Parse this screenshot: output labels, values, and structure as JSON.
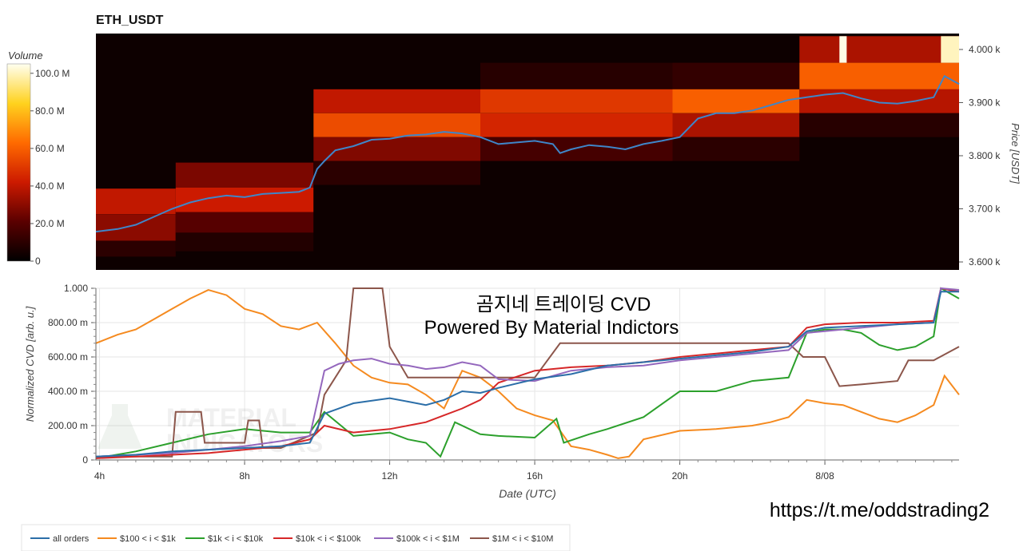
{
  "title": "ETH_USDT",
  "watermark": {
    "title_line1": "곰지네 트레이딩 CVD",
    "title_line2": "Powered By Material Indictors",
    "logo_text_line1": "MATERIAL",
    "logo_text_line2": "INDICATORS",
    "link": "https://t.me/oddstrading2"
  },
  "colors": {
    "all_orders": "#2b6ea8",
    "band_100_1k": "#f58a1f",
    "band_1k_10k": "#2ca02c",
    "band_10k_100k": "#d62728",
    "band_100k_1m": "#9467bd",
    "band_1m_10m": "#8c564b",
    "price_line": "#3f86c9"
  },
  "chart_data": [
    {
      "type": "heatmap",
      "title": "ETH_USDT",
      "colorbar_label": "Volume",
      "colorbar_ticks": [
        "100.0 M",
        "80.0 M",
        "60.0 M",
        "40.0 M",
        "20.0 M",
        "0"
      ],
      "colorbar_range": [
        0,
        105000000
      ],
      "ylabel": "Price [USDT]",
      "y_ticks": [
        "4.000 k",
        "3.900 k",
        "3.800 k",
        "3.700 k",
        "3.600 k"
      ],
      "ylim": [
        3585,
        4030
      ],
      "xlim_hours": [
        3.9,
        27.7
      ],
      "price_series": {
        "x_hours": [
          3.9,
          4.5,
          5.0,
          5.5,
          6.0,
          6.5,
          7.0,
          7.5,
          8.0,
          8.5,
          9.0,
          9.5,
          9.8,
          10.0,
          10.2,
          10.5,
          11.0,
          11.5,
          12.0,
          12.5,
          13.0,
          13.5,
          14.0,
          14.5,
          15.0,
          15.5,
          16.0,
          16.5,
          16.7,
          17.0,
          17.5,
          18.0,
          18.5,
          19.0,
          19.5,
          20.0,
          20.5,
          21.0,
          21.5,
          22.0,
          22.5,
          23.0,
          23.5,
          24.0,
          24.5,
          25.0,
          25.5,
          26.0,
          26.5,
          27.0,
          27.3,
          27.7
        ],
        "price": [
          3657,
          3662,
          3670,
          3685,
          3700,
          3712,
          3720,
          3725,
          3722,
          3728,
          3730,
          3732,
          3740,
          3775,
          3790,
          3810,
          3818,
          3830,
          3832,
          3838,
          3840,
          3845,
          3842,
          3835,
          3822,
          3825,
          3828,
          3822,
          3805,
          3812,
          3820,
          3817,
          3812,
          3822,
          3828,
          3835,
          3870,
          3880,
          3880,
          3885,
          3895,
          3905,
          3910,
          3915,
          3918,
          3908,
          3900,
          3898,
          3903,
          3910,
          3950,
          3935
        ]
      },
      "volume_bands": [
        {
          "x_start": 3.9,
          "x_end": 6.1,
          "price_low": 3690,
          "price_high": 3738,
          "volume": 40000000
        },
        {
          "x_start": 3.9,
          "x_end": 6.1,
          "price_low": 3640,
          "price_high": 3690,
          "volume": 30000000
        },
        {
          "x_start": 3.9,
          "x_end": 6.1,
          "price_low": 3610,
          "price_high": 3640,
          "volume": 10000000
        },
        {
          "x_start": 6.1,
          "x_end": 9.9,
          "price_low": 3740,
          "price_high": 3787,
          "volume": 27000000
        },
        {
          "x_start": 6.1,
          "x_end": 9.9,
          "price_low": 3694,
          "price_high": 3740,
          "volume": 42000000
        },
        {
          "x_start": 6.1,
          "x_end": 9.9,
          "price_low": 3655,
          "price_high": 3694,
          "volume": 20000000
        },
        {
          "x_start": 6.1,
          "x_end": 9.9,
          "price_low": 3620,
          "price_high": 3655,
          "volume": 8000000
        },
        {
          "x_start": 9.9,
          "x_end": 14.5,
          "price_low": 3880,
          "price_high": 3925,
          "volume": 40000000
        },
        {
          "x_start": 9.9,
          "x_end": 14.5,
          "price_low": 3835,
          "price_high": 3880,
          "volume": 55000000
        },
        {
          "x_start": 9.9,
          "x_end": 14.5,
          "price_low": 3790,
          "price_high": 3835,
          "volume": 28000000
        },
        {
          "x_start": 9.9,
          "x_end": 14.5,
          "price_low": 3745,
          "price_high": 3790,
          "volume": 10000000
        },
        {
          "x_start": 14.5,
          "x_end": 19.8,
          "price_low": 3925,
          "price_high": 3975,
          "volume": 9000000
        },
        {
          "x_start": 14.5,
          "x_end": 19.8,
          "price_low": 3880,
          "price_high": 3925,
          "volume": 50000000
        },
        {
          "x_start": 14.5,
          "x_end": 19.8,
          "price_low": 3835,
          "price_high": 3880,
          "volume": 45000000
        },
        {
          "x_start": 14.5,
          "x_end": 19.8,
          "price_low": 3790,
          "price_high": 3835,
          "volume": 16000000
        },
        {
          "x_start": 19.8,
          "x_end": 23.3,
          "price_low": 3925,
          "price_high": 3975,
          "volume": 12000000
        },
        {
          "x_start": 19.8,
          "x_end": 23.3,
          "price_low": 3880,
          "price_high": 3925,
          "volume": 60000000
        },
        {
          "x_start": 19.8,
          "x_end": 23.3,
          "price_low": 3835,
          "price_high": 3880,
          "volume": 36000000
        },
        {
          "x_start": 19.8,
          "x_end": 23.3,
          "price_low": 3790,
          "price_high": 3835,
          "volume": 10000000
        },
        {
          "x_start": 23.3,
          "x_end": 27.7,
          "price_low": 3975,
          "price_high": 4025,
          "volume": 36000000
        },
        {
          "x_start": 23.3,
          "x_end": 27.7,
          "price_low": 3925,
          "price_high": 3975,
          "volume": 60000000
        },
        {
          "x_start": 23.3,
          "x_end": 27.7,
          "price_low": 3880,
          "price_high": 3925,
          "volume": 38000000
        },
        {
          "x_start": 23.3,
          "x_end": 27.7,
          "price_low": 3835,
          "price_high": 3880,
          "volume": 9000000
        },
        {
          "x_start": 27.2,
          "x_end": 27.7,
          "price_low": 3975,
          "price_high": 4025,
          "volume": 100000000
        },
        {
          "x_start": 24.4,
          "x_end": 24.6,
          "price_low": 3975,
          "price_high": 4025,
          "volume": 104000000
        }
      ]
    },
    {
      "type": "line",
      "xlabel": "Date (UTC)",
      "ylabel": "Normalized CVD [arb. u.]",
      "x_ticks": [
        "4h",
        "8h",
        "12h",
        "16h",
        "20h",
        "8/08"
      ],
      "x_tick_hours": [
        4,
        8,
        12,
        16,
        20,
        24
      ],
      "xlim_hours": [
        3.9,
        27.7
      ],
      "y_ticks": [
        "1.000",
        "800.00 m",
        "600.00 m",
        "400.00 m",
        "200.00 m",
        "0"
      ],
      "y_tick_values": [
        1.0,
        0.8,
        0.6,
        0.4,
        0.2,
        0
      ],
      "ylim": [
        0,
        1.0
      ],
      "grid": true,
      "legend_position": "bottom-left",
      "series": [
        {
          "name": "all orders",
          "x": [
            3.9,
            5.0,
            6.0,
            7.0,
            8.0,
            9.0,
            9.8,
            10.2,
            11.0,
            12.0,
            12.5,
            13.0,
            13.5,
            14.0,
            14.5,
            15.0,
            16.0,
            17.0,
            18.0,
            19.0,
            20.0,
            21.0,
            22.0,
            23.0,
            23.5,
            24.0,
            25.0,
            26.0,
            27.0,
            27.2,
            27.7
          ],
          "y": [
            0.02,
            0.03,
            0.05,
            0.06,
            0.07,
            0.08,
            0.1,
            0.27,
            0.33,
            0.36,
            0.34,
            0.32,
            0.35,
            0.4,
            0.39,
            0.42,
            0.47,
            0.5,
            0.55,
            0.57,
            0.59,
            0.61,
            0.63,
            0.66,
            0.75,
            0.77,
            0.78,
            0.79,
            0.8,
            0.98,
            0.98
          ]
        },
        {
          "name": "$100 < i < $1k",
          "x": [
            3.9,
            4.5,
            5.0,
            5.5,
            6.0,
            6.5,
            7.0,
            7.5,
            8.0,
            8.5,
            9.0,
            9.5,
            10.0,
            10.5,
            11.0,
            11.5,
            12.0,
            12.5,
            13.0,
            13.5,
            14.0,
            14.5,
            15.0,
            15.5,
            16.0,
            16.5,
            17.0,
            17.5,
            18.0,
            18.3,
            18.6,
            19.0,
            20.0,
            21.0,
            22.0,
            22.5,
            23.0,
            23.5,
            24.0,
            24.5,
            25.0,
            25.5,
            26.0,
            26.5,
            27.0,
            27.3,
            27.7
          ],
          "y": [
            0.68,
            0.73,
            0.76,
            0.82,
            0.88,
            0.94,
            0.99,
            0.96,
            0.88,
            0.85,
            0.78,
            0.76,
            0.8,
            0.68,
            0.55,
            0.48,
            0.45,
            0.44,
            0.38,
            0.3,
            0.52,
            0.48,
            0.4,
            0.3,
            0.26,
            0.23,
            0.08,
            0.06,
            0.03,
            0.01,
            0.02,
            0.12,
            0.17,
            0.18,
            0.2,
            0.22,
            0.25,
            0.35,
            0.33,
            0.32,
            0.28,
            0.24,
            0.22,
            0.26,
            0.32,
            0.49,
            0.38
          ]
        },
        {
          "name": "$1k < i < $10k",
          "x": [
            3.9,
            5.0,
            6.0,
            7.0,
            8.0,
            9.0,
            9.8,
            10.2,
            11.0,
            12.0,
            12.5,
            13.0,
            13.4,
            13.8,
            14.5,
            15.0,
            16.0,
            16.6,
            16.8,
            17.5,
            18.0,
            19.0,
            20.0,
            21.0,
            22.0,
            23.0,
            23.5,
            24.0,
            24.5,
            25.0,
            25.5,
            26.0,
            26.5,
            27.0,
            27.2,
            27.7
          ],
          "y": [
            0.01,
            0.05,
            0.1,
            0.15,
            0.18,
            0.16,
            0.16,
            0.28,
            0.14,
            0.16,
            0.12,
            0.1,
            0.02,
            0.22,
            0.15,
            0.14,
            0.13,
            0.24,
            0.1,
            0.15,
            0.18,
            0.25,
            0.4,
            0.4,
            0.46,
            0.48,
            0.74,
            0.76,
            0.76,
            0.74,
            0.67,
            0.64,
            0.66,
            0.72,
            1.0,
            0.94
          ]
        },
        {
          "name": "$10k < i < $100k",
          "x": [
            3.9,
            5.0,
            6.0,
            7.0,
            8.0,
            9.0,
            9.8,
            10.2,
            11.0,
            12.0,
            12.5,
            13.0,
            13.5,
            14.0,
            14.5,
            15.0,
            16.0,
            17.0,
            18.0,
            19.0,
            20.0,
            21.0,
            22.0,
            23.0,
            23.5,
            24.0,
            25.0,
            26.0,
            27.0,
            27.2,
            27.7
          ],
          "y": [
            0.01,
            0.02,
            0.03,
            0.04,
            0.06,
            0.08,
            0.12,
            0.2,
            0.16,
            0.18,
            0.2,
            0.22,
            0.26,
            0.3,
            0.35,
            0.45,
            0.52,
            0.54,
            0.55,
            0.57,
            0.6,
            0.62,
            0.64,
            0.66,
            0.77,
            0.79,
            0.8,
            0.8,
            0.81,
            1.0,
            0.98
          ]
        },
        {
          "name": "$100k < i < $1M",
          "x": [
            3.9,
            5.0,
            6.0,
            7.0,
            8.0,
            9.0,
            9.8,
            10.2,
            10.6,
            11.0,
            11.5,
            12.0,
            12.5,
            13.0,
            13.5,
            14.0,
            14.5,
            15.0,
            16.0,
            17.0,
            18.0,
            19.0,
            20.0,
            21.0,
            22.0,
            23.0,
            23.5,
            24.0,
            25.0,
            26.0,
            27.0,
            27.2,
            27.7
          ],
          "y": [
            0.02,
            0.03,
            0.04,
            0.06,
            0.08,
            0.11,
            0.14,
            0.52,
            0.56,
            0.58,
            0.59,
            0.56,
            0.55,
            0.53,
            0.54,
            0.57,
            0.55,
            0.47,
            0.46,
            0.52,
            0.54,
            0.55,
            0.58,
            0.6,
            0.62,
            0.64,
            0.74,
            0.75,
            0.77,
            0.79,
            0.8,
            1.0,
            0.99
          ]
        },
        {
          "name": "$1M < i < $10M",
          "x": [
            3.9,
            6.0,
            6.1,
            6.8,
            6.9,
            8.0,
            8.1,
            8.4,
            8.5,
            9.0,
            10.0,
            10.2,
            10.8,
            11.0,
            11.8,
            12.0,
            12.5,
            14.5,
            16.0,
            16.7,
            19.0,
            21.0,
            23.0,
            23.4,
            24.0,
            24.4,
            25.0,
            26.0,
            26.3,
            27.0,
            27.7
          ],
          "y": [
            0.02,
            0.02,
            0.28,
            0.28,
            0.1,
            0.1,
            0.23,
            0.23,
            0.07,
            0.07,
            0.16,
            0.38,
            0.58,
            1.0,
            1.0,
            0.66,
            0.48,
            0.48,
            0.48,
            0.68,
            0.68,
            0.68,
            0.68,
            0.6,
            0.6,
            0.43,
            0.44,
            0.46,
            0.58,
            0.58,
            0.66
          ]
        }
      ]
    }
  ]
}
